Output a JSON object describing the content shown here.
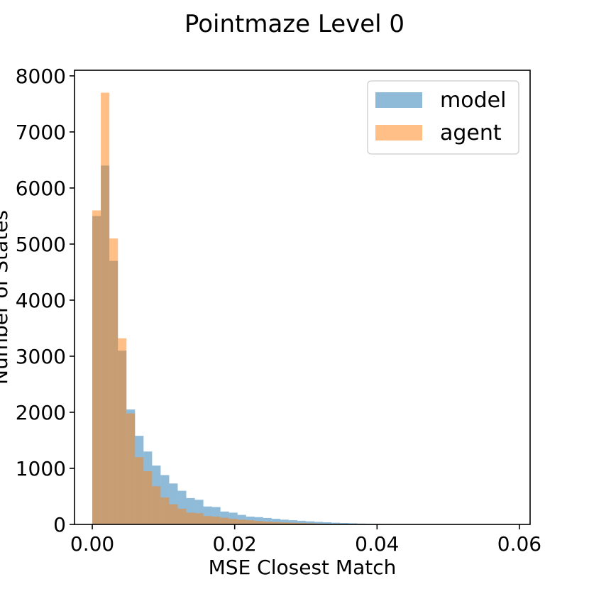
{
  "chart_data": {
    "type": "bar",
    "title": "Pointmaze Level 0",
    "xlabel": "MSE Closest Match",
    "ylabel": "Number of States",
    "xlim": [
      -0.0025,
      0.0615
    ],
    "ylim": [
      0,
      8100
    ],
    "xticks": [
      "0.00",
      "0.02",
      "0.04",
      "0.06"
    ],
    "yticks": [
      "0",
      "1000",
      "2000",
      "3000",
      "4000",
      "5000",
      "6000",
      "7000",
      "8000"
    ],
    "bin_edges": [
      0.0,
      0.0012,
      0.0024,
      0.0036,
      0.0048,
      0.006,
      0.0072,
      0.0084,
      0.0096,
      0.0108,
      0.012,
      0.0132,
      0.0144,
      0.0156,
      0.0168,
      0.018,
      0.0192,
      0.0204,
      0.0216,
      0.0228,
      0.024,
      0.0252,
      0.0264,
      0.0276,
      0.0288,
      0.03,
      0.0312,
      0.0324,
      0.0336,
      0.0348,
      0.036,
      0.0372,
      0.0384,
      0.0396,
      0.0408,
      0.042,
      0.0432,
      0.0444,
      0.0456,
      0.0468,
      0.048,
      0.0492,
      0.0504,
      0.0516,
      0.0528,
      0.054,
      0.0552,
      0.0564,
      0.0576,
      0.0588
    ],
    "series": [
      {
        "name": "model",
        "color": "#1f77b4",
        "alpha": 0.5,
        "values": [
          5500,
          6400,
          4700,
          3100,
          2050,
          1580,
          1300,
          1050,
          880,
          730,
          600,
          470,
          440,
          320,
          310,
          230,
          210,
          170,
          140,
          130,
          115,
          100,
          85,
          75,
          65,
          55,
          45,
          38,
          30,
          25,
          20,
          15,
          12,
          10,
          8,
          6,
          5,
          4,
          3,
          3,
          2,
          2,
          1,
          1,
          1,
          1,
          0,
          0,
          0
        ]
      },
      {
        "name": "agent",
        "color": "#ff7f0e",
        "alpha": 0.5,
        "values": [
          5600,
          7700,
          5100,
          3320,
          1980,
          1200,
          950,
          680,
          480,
          360,
          280,
          210,
          200,
          150,
          140,
          120,
          100,
          85,
          75,
          60,
          50,
          42,
          35,
          30,
          25,
          20,
          15,
          12,
          10,
          8,
          6,
          5,
          4,
          3,
          3,
          2,
          2,
          1,
          1,
          1,
          1,
          0,
          0,
          0,
          0,
          0,
          0,
          0,
          0
        ]
      }
    ],
    "legend": {
      "position": "upper-right",
      "entries": [
        "model",
        "agent"
      ]
    },
    "grid": false
  }
}
